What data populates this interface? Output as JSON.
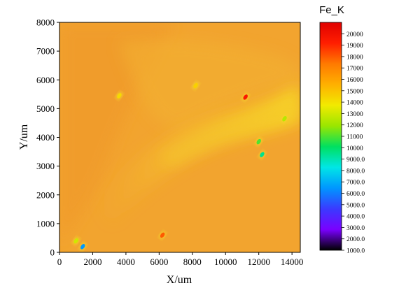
{
  "chart_data": {
    "type": "heatmap",
    "title": "",
    "xlabel": "X/um",
    "ylabel": "Y/um",
    "xlim": [
      0,
      14500
    ],
    "ylim": [
      0,
      8000
    ],
    "x_ticks": [
      0,
      2000,
      4000,
      6000,
      8000,
      10000,
      12000,
      14000
    ],
    "y_ticks": [
      0,
      1000,
      2000,
      3000,
      4000,
      5000,
      6000,
      7000,
      8000
    ],
    "colorbar": {
      "title": "Fe_K",
      "range": [
        1000,
        21000
      ],
      "labels": [
        "1000.0",
        "2000.0",
        "3000.0",
        "4000.0",
        "5000.0",
        "6000.0",
        "7000.0",
        "8000.0",
        "9000.0",
        "10000",
        "11000",
        "12000",
        "13000",
        "14000",
        "15000",
        "16000",
        "17000",
        "18000",
        "19000",
        "20000"
      ],
      "label_values": [
        1000,
        2000,
        3000,
        4000,
        5000,
        6000,
        7000,
        8000,
        9000,
        10000,
        11000,
        12000,
        13000,
        14000,
        15000,
        16000,
        17000,
        18000,
        19000,
        20000
      ],
      "colors": [
        "#000000",
        "#7a00ff",
        "#3a3aff",
        "#0096ff",
        "#00e6e6",
        "#00e060",
        "#9ae600",
        "#f2ea00",
        "#ffb000",
        "#ff7a00",
        "#ff1e00",
        "#e00000"
      ]
    },
    "background_level": 16500,
    "band_level": 15200,
    "features": [
      {
        "x": 11200,
        "y": 5400,
        "value": 19500
      },
      {
        "x": 6200,
        "y": 600,
        "value": 18000
      },
      {
        "x": 3600,
        "y": 5450,
        "value": 14200
      },
      {
        "x": 8200,
        "y": 5800,
        "value": 14500
      },
      {
        "x": 13550,
        "y": 4650,
        "value": 12500
      },
      {
        "x": 12000,
        "y": 3850,
        "value": 11000
      },
      {
        "x": 12200,
        "y": 3400,
        "value": 9500
      },
      {
        "x": 1000,
        "y": 400,
        "value": 13000
      },
      {
        "x": 1400,
        "y": 200,
        "value": 6500
      }
    ]
  }
}
